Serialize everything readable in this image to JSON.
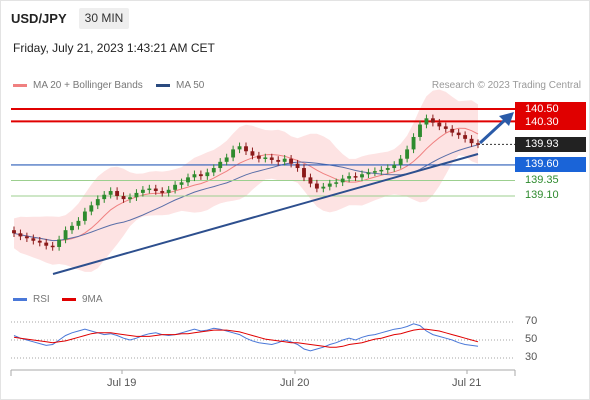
{
  "header": {
    "symbol": "USD/JPY",
    "timeframe": "30 MIN",
    "timestamp": "Friday, July 21, 2023 1:43:21 AM CET"
  },
  "legend": {
    "bb_label": "MA 20 + Bollinger Bands",
    "ma50_label": "MA 50",
    "credit": "Research © 2023 Trading Central",
    "bb_color": "#f08080",
    "ma50_color": "#2a4a7f"
  },
  "levels": {
    "r2": "140.50",
    "r1": "140.30",
    "last": "139.93",
    "pivot": "139.60",
    "s1": "139.35",
    "s2": "139.10"
  },
  "rsi_legend": {
    "rsi_label": "RSI",
    "ma_label": "9MA",
    "rsi_color": "#4a78d8",
    "ma_color": "#e00000"
  },
  "rsi_ticks": [
    "70",
    "50",
    "30"
  ],
  "x_labels": [
    "Jul 19",
    "Jul 20",
    "Jul 21"
  ],
  "colors": {
    "resistance": "#e00000",
    "pivot": "#2a5cb8",
    "support": "#9ccf8f",
    "trendline": "#2d4f8e",
    "arrow": "#2b5ba8",
    "bull_candle": "#2e8b2e",
    "bear_candle": "#8b1a1a"
  },
  "chart_data": {
    "type": "candlestick",
    "x_labels": [
      "Jul 19",
      "Jul 20",
      "Jul 21"
    ],
    "price_levels": {
      "resistance": [
        140.5,
        140.3
      ],
      "last_price": 139.93,
      "pivot": 139.6,
      "support": [
        139.35,
        139.1
      ]
    },
    "close_series_approx": [
      138.5,
      138.45,
      138.42,
      138.38,
      138.35,
      138.3,
      138.28,
      138.4,
      138.55,
      138.62,
      138.7,
      138.85,
      138.95,
      139.05,
      139.12,
      139.18,
      139.1,
      139.05,
      139.08,
      139.15,
      139.2,
      139.22,
      139.18,
      139.15,
      139.2,
      139.28,
      139.32,
      139.4,
      139.45,
      139.42,
      139.48,
      139.55,
      139.65,
      139.72,
      139.85,
      139.9,
      139.82,
      139.75,
      139.7,
      139.72,
      139.68,
      139.65,
      139.7,
      139.62,
      139.55,
      139.4,
      139.3,
      139.22,
      139.25,
      139.3,
      139.32,
      139.38,
      139.42,
      139.4,
      139.45,
      139.48,
      139.5,
      139.52,
      139.55,
      139.6,
      139.7,
      139.85,
      140.05,
      140.25,
      140.35,
      140.28,
      140.22,
      140.18,
      140.12,
      140.08,
      140.02,
      139.95,
      139.93
    ],
    "rsi_axis": [
      30,
      50,
      70
    ],
    "rsi_series_approx": [
      55,
      52,
      50,
      48,
      46,
      44,
      45,
      50,
      55,
      58,
      60,
      62,
      60,
      58,
      56,
      57,
      55,
      52,
      50,
      52,
      55,
      57,
      58,
      56,
      55,
      56,
      58,
      60,
      62,
      60,
      61,
      63,
      62,
      60,
      58,
      56,
      52,
      49,
      47,
      46,
      45,
      47,
      50,
      48,
      45,
      40,
      38,
      40,
      42,
      45,
      47,
      50,
      52,
      50,
      53,
      55,
      56,
      58,
      60,
      62,
      63,
      65,
      68,
      66,
      60,
      56,
      54,
      52,
      50,
      47,
      45,
      44,
      43
    ],
    "rsi_ma_series_approx": [
      53,
      52,
      51,
      50,
      49,
      48,
      47,
      48,
      49,
      51,
      53,
      55,
      57,
      58,
      58,
      58,
      57,
      56,
      55,
      54,
      54,
      54,
      55,
      56,
      56,
      56,
      57,
      57,
      58,
      59,
      60,
      61,
      61,
      61,
      60,
      59,
      57,
      55,
      53,
      51,
      50,
      49,
      48,
      47,
      47,
      46,
      45,
      44,
      43,
      42,
      42,
      43,
      45,
      46,
      47,
      49,
      51,
      52,
      54,
      56,
      57,
      59,
      61,
      62,
      62,
      61,
      60,
      58,
      56,
      54,
      52,
      50,
      48
    ]
  }
}
